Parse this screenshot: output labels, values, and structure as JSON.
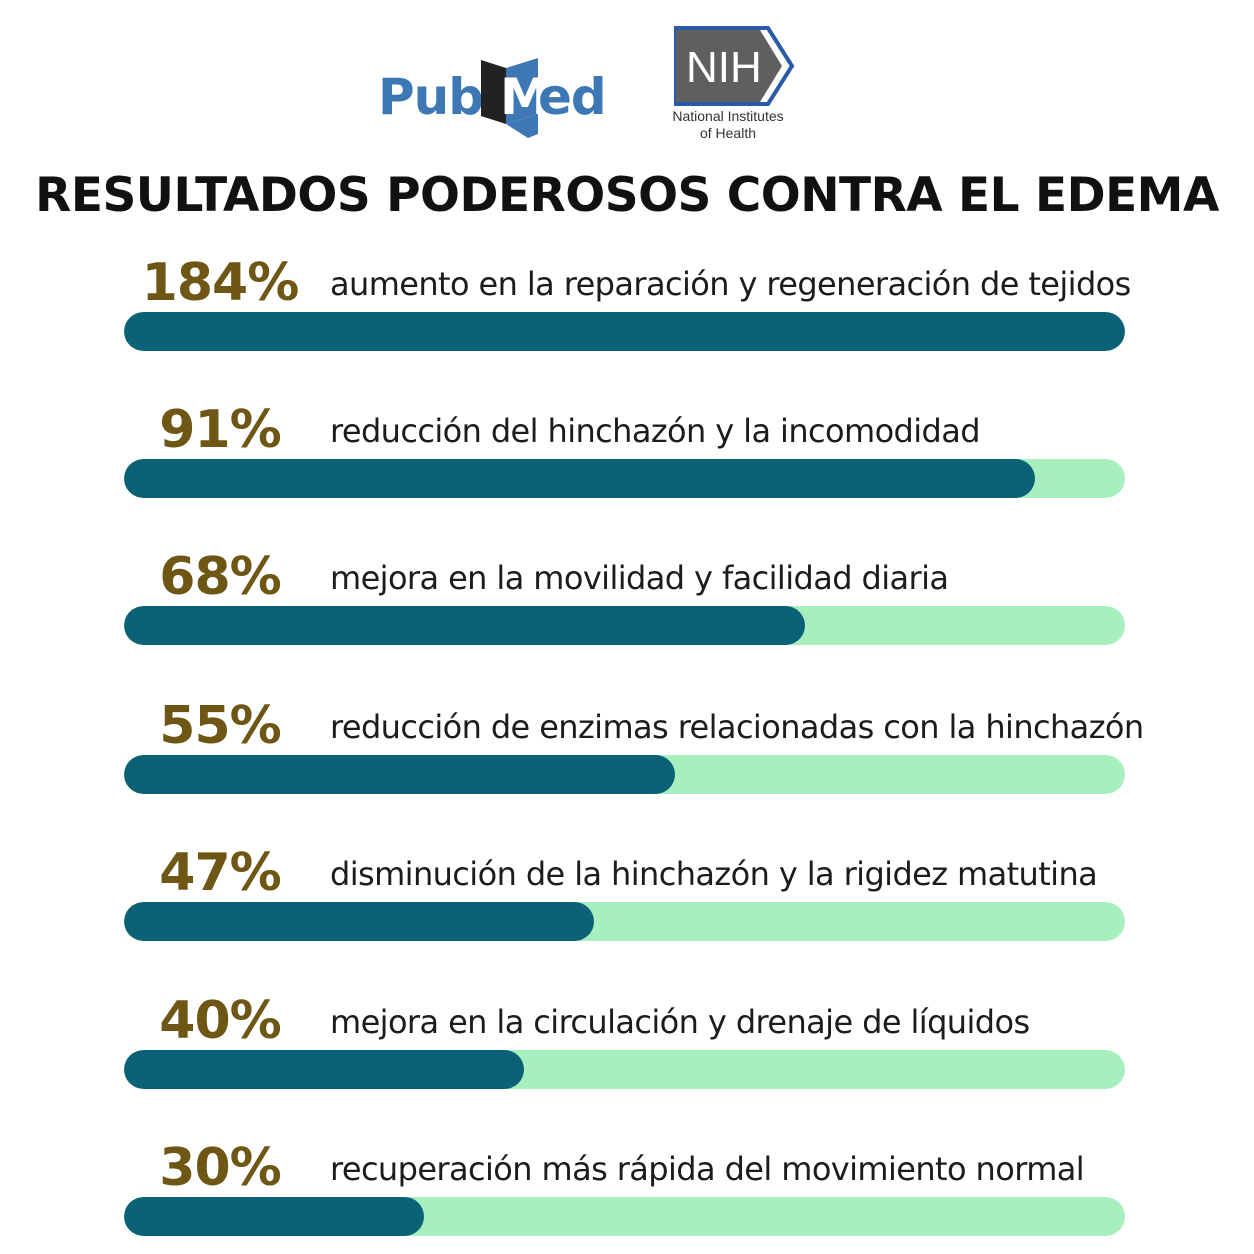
{
  "logos": {
    "pubmed": "PubMed",
    "nih_mark": "NIH",
    "nih_line1": "National Institutes",
    "nih_line2": "of Health"
  },
  "title": "RESULTADOS PODEROSOS CONTRA EL EDEMA",
  "colors": {
    "percent_text": "#6e5615",
    "bar_fill": "#0b6277",
    "bar_track": "#a8efbf",
    "pubmed_blue": "#3d78b5",
    "nih_box": "#616161"
  },
  "stats": [
    {
      "percent": "184%",
      "description": "aumento en la reparación y regeneración de tejidos",
      "fill": 1.0
    },
    {
      "percent": "91%",
      "description": "reducción del hinchazón y la incomodidad",
      "fill": 0.91
    },
    {
      "percent": "68%",
      "description": "mejora en la movilidad y facilidad diaria",
      "fill": 0.68
    },
    {
      "percent": "55%",
      "description": "reducción de enzimas relacionadas con la hinchazón",
      "fill": 0.55
    },
    {
      "percent": "47%",
      "description": "disminución de la hinchazón y la rigidez matutina",
      "fill": 0.47
    },
    {
      "percent": "40%",
      "description": "mejora en la circulación y drenaje de líquidos",
      "fill": 0.4
    },
    {
      "percent": "30%",
      "description": "recuperación más rápida del movimiento normal",
      "fill": 0.3
    }
  ]
}
